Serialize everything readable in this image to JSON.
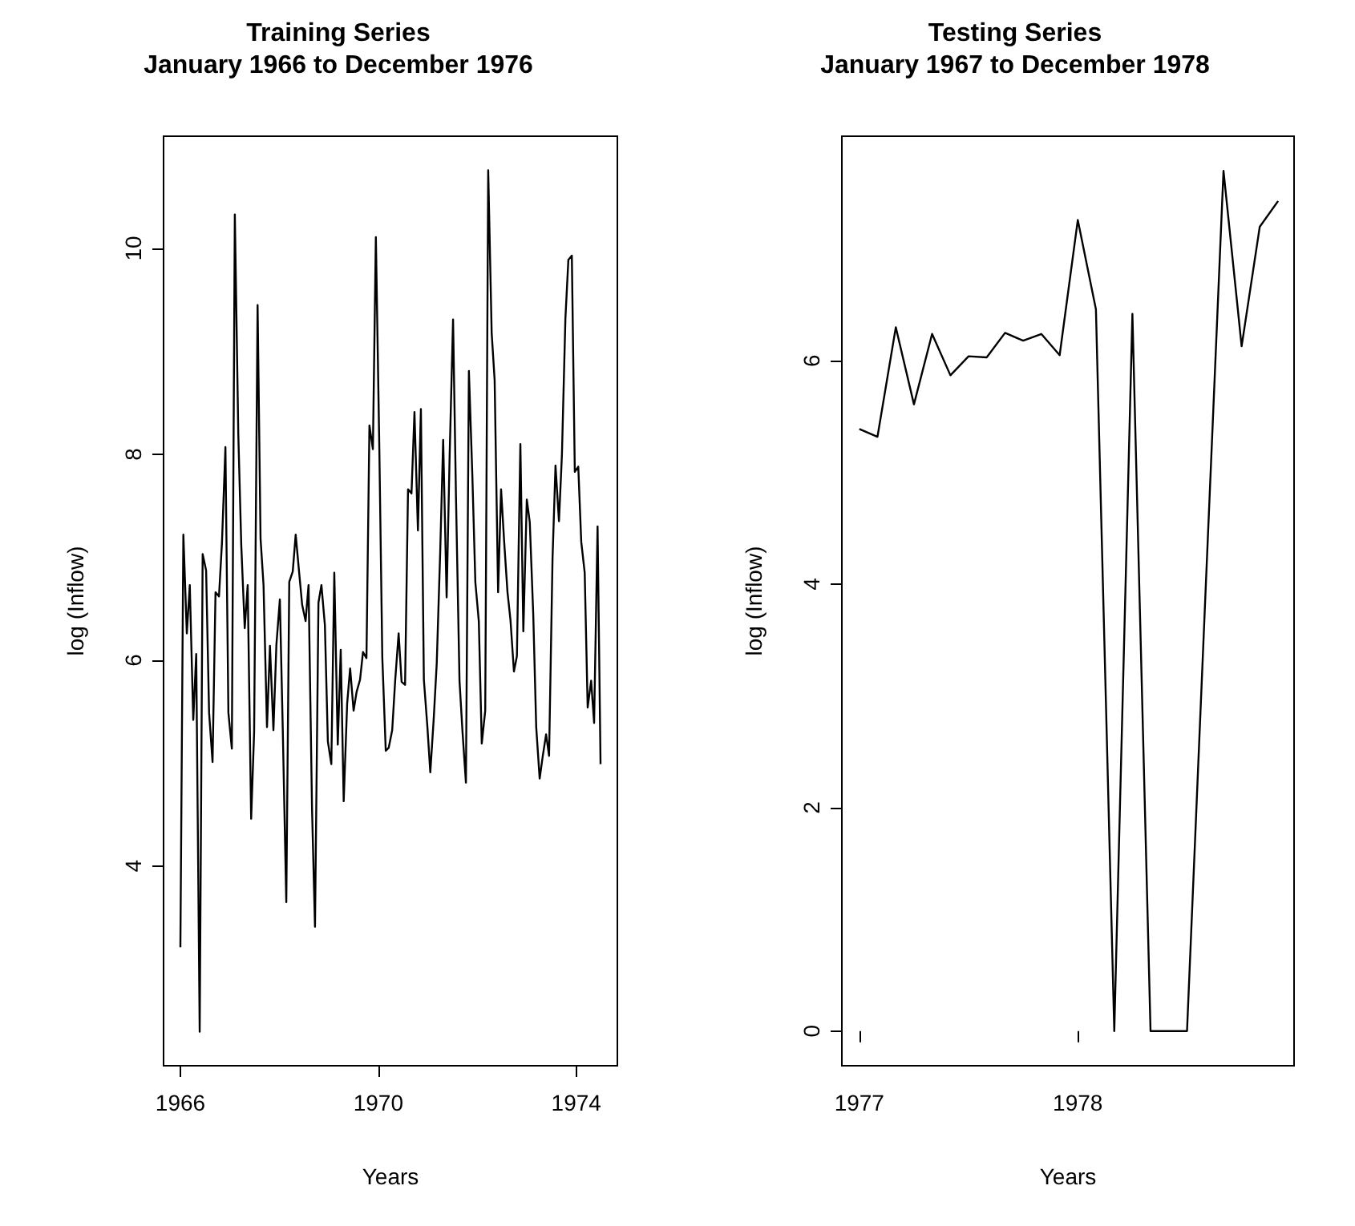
{
  "chart_data": [
    {
      "type": "line",
      "title": "Training Series",
      "subtitle": "January 1966 to December 1976",
      "xlabel": "Years",
      "ylabel": "log (Inflow)",
      "xlim": [
        1965.66,
        1974.83
      ],
      "xticks": [
        1966,
        1970,
        1974
      ],
      "ylim": [
        2.06,
        11.09
      ],
      "yticks": [
        4,
        6,
        8,
        10
      ],
      "x": [
        1966.0,
        1966.06,
        1966.13,
        1966.19,
        1966.26,
        1966.32,
        1966.39,
        1966.45,
        1966.52,
        1966.58,
        1966.65,
        1966.71,
        1966.78,
        1966.84,
        1966.91,
        1966.97,
        1967.04,
        1967.1,
        1967.17,
        1967.23,
        1967.3,
        1967.36,
        1967.43,
        1967.49,
        1967.56,
        1967.62,
        1967.68,
        1967.75,
        1967.81,
        1967.88,
        1967.94,
        1968.01,
        1968.07,
        1968.14,
        1968.2,
        1968.27,
        1968.33,
        1968.4,
        1968.46,
        1968.53,
        1968.59,
        1968.66,
        1968.72,
        1968.79,
        1968.85,
        1968.92,
        1968.98,
        1969.05,
        1969.11,
        1969.18,
        1969.24,
        1969.3,
        1969.37,
        1969.43,
        1969.5,
        1969.56,
        1969.63,
        1969.69,
        1969.76,
        1969.82,
        1969.89,
        1969.95,
        1970.02,
        1970.08,
        1970.15,
        1970.21,
        1970.28,
        1970.34,
        1970.41,
        1970.47,
        1970.54,
        1970.6,
        1970.67,
        1970.73,
        1970.8,
        1970.86,
        1970.92,
        1970.99,
        1971.05,
        1971.12,
        1971.18,
        1971.25,
        1971.31,
        1971.38,
        1971.44,
        1971.51,
        1971.57,
        1971.64,
        1971.7,
        1971.77,
        1971.83,
        1971.9,
        1971.96,
        1972.03,
        1972.09,
        1972.16,
        1972.22,
        1972.29,
        1972.35,
        1972.42,
        1972.48,
        1972.54,
        1972.61,
        1972.67,
        1972.74,
        1972.8,
        1972.87,
        1972.93,
        1973.0,
        1973.06,
        1973.13,
        1973.19,
        1973.26,
        1973.32,
        1973.39,
        1973.45,
        1973.52,
        1973.58,
        1973.65,
        1973.71,
        1973.78,
        1973.84,
        1973.91,
        1973.97,
        1974.04,
        1974.1,
        1974.17,
        1974.23,
        1974.3,
        1974.36,
        1974.43,
        1974.49
      ],
      "series": [
        {
          "color": "#000000",
          "values": [
            3.21,
            7.22,
            6.26,
            6.73,
            5.42,
            6.06,
            2.39,
            7.03,
            6.87,
            5.49,
            5.01,
            6.66,
            6.62,
            7.14,
            8.07,
            5.49,
            5.14,
            10.33,
            8.2,
            7.12,
            6.31,
            6.73,
            4.46,
            5.3,
            9.45,
            7.18,
            6.73,
            5.35,
            6.14,
            5.32,
            6.15,
            6.59,
            5.3,
            3.65,
            6.76,
            6.86,
            7.22,
            6.85,
            6.54,
            6.38,
            6.73,
            4.56,
            3.41,
            6.56,
            6.73,
            6.34,
            5.21,
            4.99,
            6.85,
            5.18,
            6.1,
            4.63,
            5.58,
            5.92,
            5.51,
            5.69,
            5.81,
            6.08,
            6.02,
            8.28,
            8.05,
            10.11,
            8.06,
            6.03,
            5.12,
            5.15,
            5.32,
            5.8,
            6.26,
            5.79,
            5.76,
            7.66,
            7.62,
            8.41,
            7.26,
            8.44,
            5.81,
            5.36,
            4.91,
            5.44,
            5.97,
            7.05,
            8.14,
            6.61,
            7.97,
            9.31,
            7.56,
            5.8,
            5.31,
            4.81,
            8.81,
            7.79,
            6.76,
            6.38,
            5.19,
            5.51,
            10.76,
            9.18,
            8.72,
            6.66,
            7.66,
            7.17,
            6.66,
            6.39,
            5.89,
            6.04,
            8.1,
            6.28,
            7.56,
            7.34,
            6.45,
            5.35,
            4.85,
            5.06,
            5.28,
            5.07,
            6.99,
            7.89,
            7.35,
            8.0,
            9.32,
            9.89,
            9.93,
            7.83,
            7.88,
            7.15,
            6.85,
            5.54,
            5.8,
            5.39,
            7.3,
            4.99
          ]
        }
      ]
    },
    {
      "type": "line",
      "title": "Testing Series",
      "subtitle": "January 1967 to December 1978",
      "xlabel": "Years",
      "ylabel": "log (Inflow)",
      "xlim": [
        1976.92,
        1978.99
      ],
      "xticks": [
        1977,
        1978
      ],
      "ylim": [
        -0.31,
        8.01
      ],
      "yticks": [
        0,
        2,
        4,
        6
      ],
      "x": [
        1977.0,
        1977.083,
        1977.167,
        1977.25,
        1977.333,
        1977.417,
        1977.5,
        1977.583,
        1977.667,
        1977.75,
        1977.833,
        1977.917,
        1978.0,
        1978.083,
        1978.167,
        1978.25,
        1978.333,
        1978.417,
        1978.5,
        1978.583,
        1978.667,
        1978.75,
        1978.833,
        1978.917
      ],
      "series": [
        {
          "color": "#000000",
          "values": [
            5.39,
            5.32,
            6.3,
            5.61,
            6.24,
            5.87,
            6.04,
            6.03,
            6.25,
            6.18,
            6.24,
            6.05,
            7.26,
            6.46,
            0,
            6.42,
            0,
            0,
            0,
            3.85,
            7.7,
            6.13,
            7.2,
            7.43
          ]
        }
      ]
    }
  ]
}
